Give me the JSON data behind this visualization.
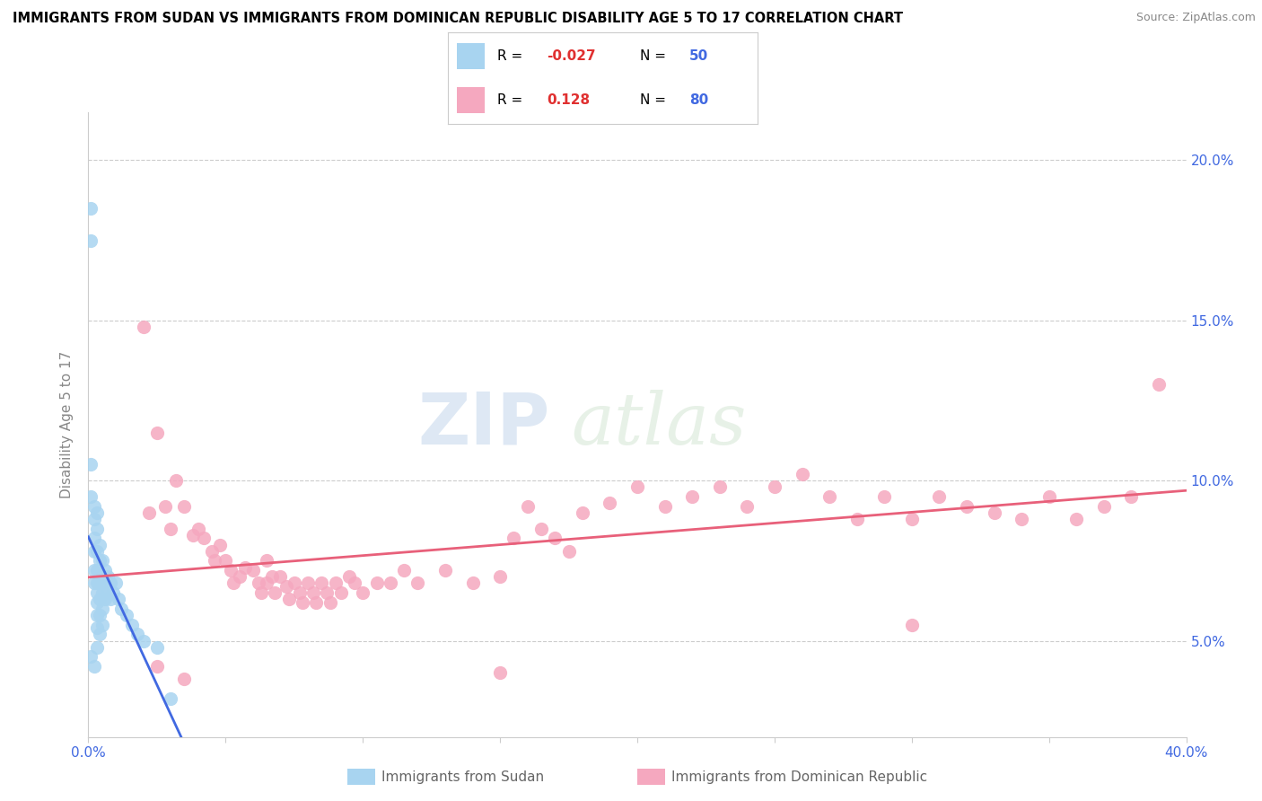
{
  "title": "IMMIGRANTS FROM SUDAN VS IMMIGRANTS FROM DOMINICAN REPUBLIC DISABILITY AGE 5 TO 17 CORRELATION CHART",
  "source": "Source: ZipAtlas.com",
  "ylabel": "Disability Age 5 to 17",
  "ytick_labels": [
    "5.0%",
    "10.0%",
    "15.0%",
    "20.0%"
  ],
  "ytick_values": [
    0.05,
    0.1,
    0.15,
    0.2
  ],
  "xlim": [
    0.0,
    0.4
  ],
  "ylim": [
    0.02,
    0.215
  ],
  "sudan_color": "#a8d4f0",
  "dominican_color": "#f5a8bf",
  "sudan_line_color": "#4169E1",
  "dominican_line_color": "#e8607a",
  "sudan_R": -0.027,
  "sudan_N": 50,
  "dominican_R": 0.128,
  "dominican_N": 80,
  "watermark_zip": "ZIP",
  "watermark_atlas": "atlas",
  "legend_label_sudan": "Immigrants from Sudan",
  "legend_label_dominican": "Immigrants from Dominican Republic",
  "sudan_x": [
    0.001,
    0.001,
    0.001,
    0.001,
    0.001,
    0.002,
    0.002,
    0.002,
    0.002,
    0.002,
    0.002,
    0.002,
    0.003,
    0.003,
    0.003,
    0.003,
    0.003,
    0.003,
    0.003,
    0.003,
    0.003,
    0.003,
    0.004,
    0.004,
    0.004,
    0.004,
    0.004,
    0.004,
    0.005,
    0.005,
    0.005,
    0.005,
    0.005,
    0.006,
    0.006,
    0.006,
    0.007,
    0.007,
    0.008,
    0.008,
    0.009,
    0.01,
    0.011,
    0.012,
    0.014,
    0.016,
    0.018,
    0.02,
    0.025,
    0.03
  ],
  "sudan_y": [
    0.185,
    0.175,
    0.105,
    0.095,
    0.045,
    0.092,
    0.088,
    0.082,
    0.078,
    0.072,
    0.068,
    0.042,
    0.09,
    0.085,
    0.078,
    0.072,
    0.068,
    0.065,
    0.062,
    0.058,
    0.054,
    0.048,
    0.08,
    0.075,
    0.068,
    0.063,
    0.058,
    0.052,
    0.075,
    0.07,
    0.065,
    0.06,
    0.055,
    0.072,
    0.068,
    0.063,
    0.07,
    0.065,
    0.068,
    0.063,
    0.065,
    0.068,
    0.063,
    0.06,
    0.058,
    0.055,
    0.052,
    0.05,
    0.048,
    0.032
  ],
  "dominican_x": [
    0.02,
    0.022,
    0.025,
    0.028,
    0.03,
    0.032,
    0.035,
    0.038,
    0.04,
    0.042,
    0.045,
    0.046,
    0.048,
    0.05,
    0.052,
    0.053,
    0.055,
    0.057,
    0.06,
    0.062,
    0.063,
    0.065,
    0.065,
    0.067,
    0.068,
    0.07,
    0.072,
    0.073,
    0.075,
    0.077,
    0.078,
    0.08,
    0.082,
    0.083,
    0.085,
    0.087,
    0.088,
    0.09,
    0.092,
    0.095,
    0.097,
    0.1,
    0.105,
    0.11,
    0.115,
    0.12,
    0.13,
    0.14,
    0.15,
    0.155,
    0.16,
    0.165,
    0.17,
    0.175,
    0.18,
    0.19,
    0.2,
    0.21,
    0.22,
    0.23,
    0.24,
    0.25,
    0.26,
    0.27,
    0.28,
    0.29,
    0.3,
    0.31,
    0.32,
    0.33,
    0.34,
    0.35,
    0.36,
    0.37,
    0.38,
    0.39,
    0.025,
    0.035,
    0.15,
    0.3
  ],
  "dominican_y": [
    0.148,
    0.09,
    0.115,
    0.092,
    0.085,
    0.1,
    0.092,
    0.083,
    0.085,
    0.082,
    0.078,
    0.075,
    0.08,
    0.075,
    0.072,
    0.068,
    0.07,
    0.073,
    0.072,
    0.068,
    0.065,
    0.075,
    0.068,
    0.07,
    0.065,
    0.07,
    0.067,
    0.063,
    0.068,
    0.065,
    0.062,
    0.068,
    0.065,
    0.062,
    0.068,
    0.065,
    0.062,
    0.068,
    0.065,
    0.07,
    0.068,
    0.065,
    0.068,
    0.068,
    0.072,
    0.068,
    0.072,
    0.068,
    0.07,
    0.082,
    0.092,
    0.085,
    0.082,
    0.078,
    0.09,
    0.093,
    0.098,
    0.092,
    0.095,
    0.098,
    0.092,
    0.098,
    0.102,
    0.095,
    0.088,
    0.095,
    0.088,
    0.095,
    0.092,
    0.09,
    0.088,
    0.095,
    0.088,
    0.092,
    0.095,
    0.13,
    0.042,
    0.038,
    0.04,
    0.055
  ]
}
